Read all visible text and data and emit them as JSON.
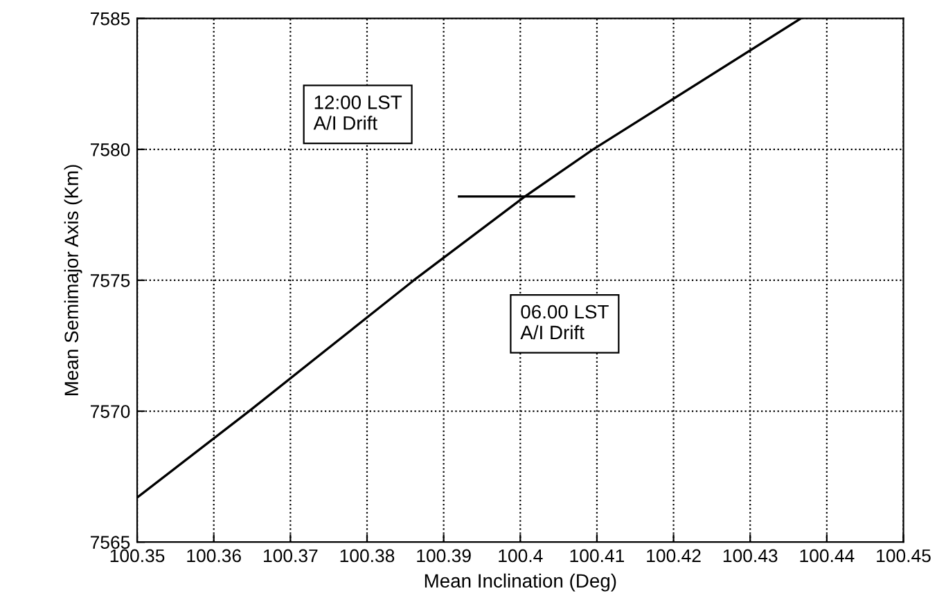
{
  "chart_data": {
    "type": "line",
    "xlabel": "Mean Inclination (Deg)",
    "ylabel": "Mean Semimajor Axis (Km)",
    "series": [
      {
        "color": "#000000",
        "x": [
          100.35,
          100.3646,
          100.3861,
          100.4006,
          100.4095,
          100.4366
        ],
        "values": [
          7566.7,
          7570,
          7575,
          7578.2,
          7580,
          7585
        ]
      },
      {
        "color": "#000000",
        "x": [
          100.392,
          100.407
        ],
        "values": [
          7578.2,
          7578.2
        ]
      }
    ],
    "xlim": [
      100.35,
      100.45
    ],
    "xticks": [
      100.35,
      100.36,
      100.37,
      100.38,
      100.39,
      100.4,
      100.41,
      100.42,
      100.43,
      100.44,
      100.45
    ],
    "ylim": [
      7565,
      7585
    ],
    "yticks": [
      7565,
      7570,
      7575,
      7580,
      7585
    ],
    "grid": true,
    "line_style": "solid",
    "marker": "none",
    "annotations": [
      "12:00 LST\nA/I Drift",
      "06.00 LST\nA/I Drift"
    ]
  }
}
